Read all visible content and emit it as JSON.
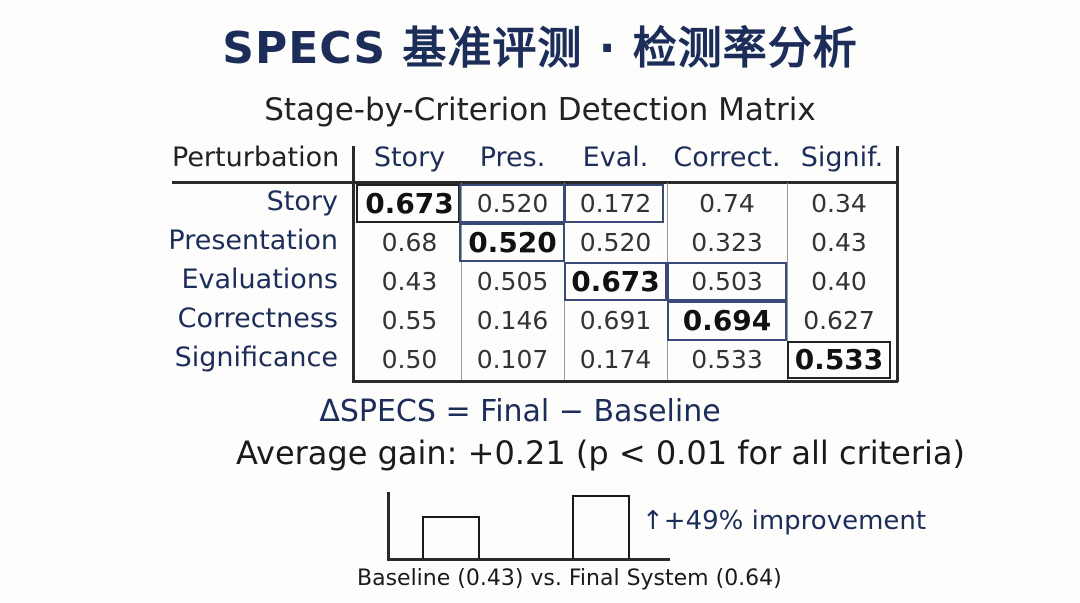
{
  "title": "SPECS 基准评测 · 检测率分析",
  "matrix": {
    "heading": "Stage-by-Criterion Detection Matrix",
    "corner_label": "Perturbation",
    "columns": [
      "Story",
      "Pres.",
      "Eval.",
      "Correct.",
      "Signif."
    ],
    "rows": [
      {
        "label": "Story",
        "values": [
          "0.673",
          "0.520",
          "0.172",
          "0.74",
          "0.34"
        ]
      },
      {
        "label": "Presentation",
        "values": [
          "0.68",
          "0.520",
          "0.520",
          "0.323",
          "0.43"
        ]
      },
      {
        "label": "Evaluations",
        "values": [
          "0.43",
          "0.505",
          "0.673",
          "0.503",
          "0.40"
        ]
      },
      {
        "label": "Correctness",
        "values": [
          "0.55",
          "0.146",
          "0.691",
          "0.694",
          "0.627"
        ]
      },
      {
        "label": "Significance",
        "values": [
          "0.50",
          "0.107",
          "0.174",
          "0.533",
          "0.533"
        ]
      }
    ]
  },
  "formula": "ΔSPECS = Final − Baseline",
  "average_gain": "Average gain: +0.21 (p < 0.01 for all criteria)",
  "comparison": {
    "baseline_value": 0.43,
    "final_value": 0.64,
    "improvement_label": "↑+49% improvement",
    "caption": "Baseline (0.43) vs. Final System (0.64)"
  }
}
